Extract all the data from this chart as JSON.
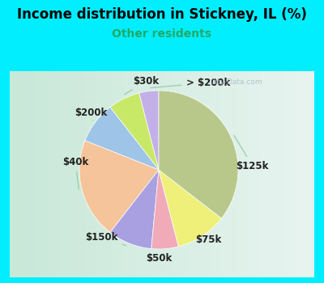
{
  "title": "Income distribution in Stickney, IL (%)",
  "subtitle": "Other residents",
  "title_color": "#000000",
  "subtitle_color": "#22aa66",
  "bg_cyan": "#00eeff",
  "bg_chart": "#e0f0e8",
  "labels": [
    "> $200k",
    "$30k",
    "$200k",
    "$40k",
    "$150k",
    "$50k",
    "$75k",
    "$125k"
  ],
  "values": [
    4.0,
    6.5,
    8.5,
    20.5,
    9.0,
    5.5,
    10.5,
    35.5
  ],
  "colors": [
    "#c4b0e8",
    "#c8e868",
    "#9ec4e8",
    "#f5c49a",
    "#a8a0e0",
    "#f0aab8",
    "#eef07a",
    "#b8c88a"
  ],
  "wedge_lw": 0.5,
  "wedge_ec": "#ffffff",
  "title_fontsize": 12,
  "subtitle_fontsize": 10,
  "label_fontsize": 8.5,
  "label_color": "#222222",
  "line_color": "#99ccaa",
  "watermark": "City-Data.com",
  "watermark_color": "#aabbcc"
}
